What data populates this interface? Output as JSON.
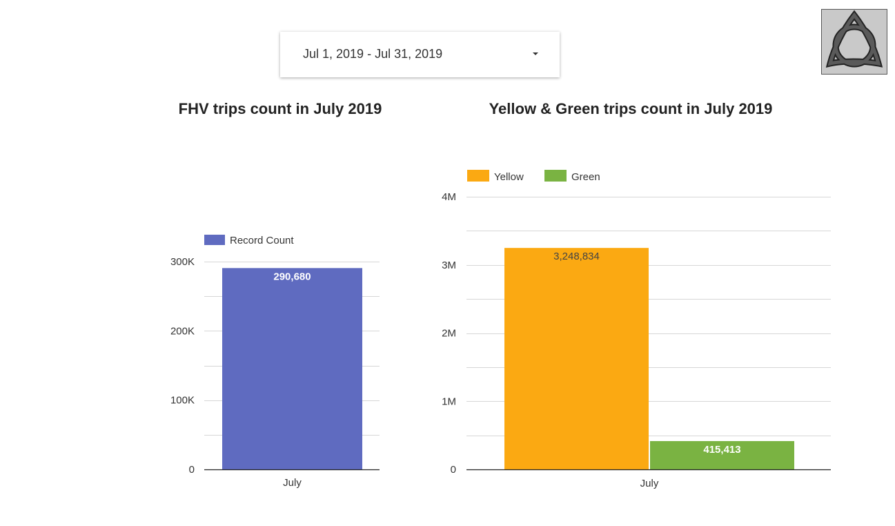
{
  "date_range": {
    "label": "Jul 1, 2019 - Jul 31, 2019",
    "icon": "caret-down-icon"
  },
  "logo": {
    "icon": "triquetra-logo-icon"
  },
  "colors": {
    "record_count": "#5f6bc0",
    "yellow": "#fba912",
    "green": "#7ab342"
  },
  "chart_data": [
    {
      "type": "bar",
      "title": "FHV trips count in July 2019",
      "categories": [
        "July"
      ],
      "series": [
        {
          "name": "Record Count",
          "values": [
            290680
          ],
          "data_labels": [
            "290,680"
          ]
        }
      ],
      "ylim": [
        0,
        300000
      ],
      "yticks": [
        0,
        100000,
        200000,
        300000
      ],
      "ytick_labels": [
        "0",
        "100K",
        "200K",
        "300K"
      ],
      "grid": true,
      "legend": "top-left"
    },
    {
      "type": "bar",
      "title": "Yellow & Green trips count in July 2019",
      "categories": [
        "July"
      ],
      "series": [
        {
          "name": "Yellow",
          "values": [
            3248834
          ],
          "data_labels": [
            "3,248,834"
          ]
        },
        {
          "name": "Green",
          "values": [
            415413
          ],
          "data_labels": [
            "415,413"
          ]
        }
      ],
      "ylim": [
        0,
        4000000
      ],
      "yticks": [
        0,
        1000000,
        2000000,
        3000000,
        4000000
      ],
      "ytick_labels": [
        "0",
        "1M",
        "2M",
        "3M",
        "4M"
      ],
      "grid": true,
      "legend": "top-left"
    }
  ]
}
